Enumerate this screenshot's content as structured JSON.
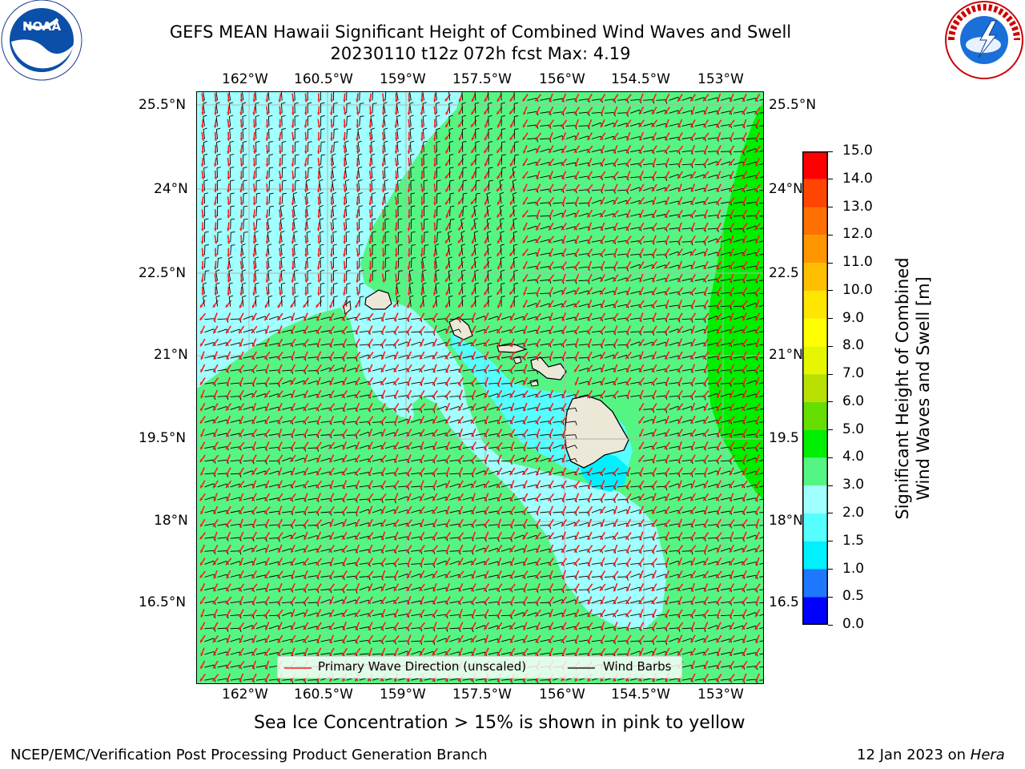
{
  "header": {
    "title_line1": "GEFS MEAN Hawaii Significant Height of Combined Wind Waves and Swell",
    "title_line2": "20230110 t12z 072h fcst   Max: 4.19"
  },
  "logos": {
    "noaa_text": "NOAA",
    "noaa_ring_text": "NATIONAL OCEANIC AND ATMOSPHERIC ADMINISTRATION · U.S. DEPARTMENT OF COMMERCE",
    "nws_ring_text": "NATIONAL WEATHER SERVICE"
  },
  "map": {
    "lon_labels": [
      "162°W",
      "160.5°W",
      "159°W",
      "157.5°W",
      "156°W",
      "154.5°W",
      "153°W"
    ],
    "lat_labels_left": [
      "25.5°N",
      "24°N",
      "22.5°N",
      "21°N",
      "19.5°N",
      "18°N",
      "16.5°N"
    ],
    "lat_labels_right": [
      "25.5°N",
      "24°N",
      "22.5",
      "21°N",
      "19.5",
      "18°N",
      "16.5"
    ],
    "legend": {
      "wave_direction": "Primary Wave Direction (unscaled)",
      "wind_barbs": "Wind Barbs"
    },
    "colors": {
      "ocean_base": "#55f583",
      "band_2_3": "#a0ffff",
      "band_1_5_2": "#55ffff",
      "band_1_1_5": "#00f0ff",
      "band_4_5": "#00ee00",
      "land": "#ece8d8",
      "wave_arrow": "#ff1a1a",
      "wind_barb": "#000000"
    }
  },
  "colorbar": {
    "label": "Significant Height of Combined Wind Waves and Swell [m]",
    "label_line1": "Significant Height of Combined",
    "label_line2": "Wind Waves and Swell [m]",
    "ticks": [
      "15.0",
      "14.0",
      "13.0",
      "12.0",
      "11.0",
      "10.0",
      "9.0",
      "8.0",
      "7.0",
      "6.0",
      "5.0",
      "4.0",
      "3.0",
      "2.0",
      "1.5",
      "1.0",
      "0.5",
      "0.0"
    ],
    "bands": [
      {
        "from": 0.0,
        "to": 0.5,
        "color": "#0000ff"
      },
      {
        "from": 0.5,
        "to": 1.0,
        "color": "#1e78ff"
      },
      {
        "from": 1.0,
        "to": 1.5,
        "color": "#00f0ff"
      },
      {
        "from": 1.5,
        "to": 2.0,
        "color": "#55ffff"
      },
      {
        "from": 2.0,
        "to": 3.0,
        "color": "#a0ffff"
      },
      {
        "from": 3.0,
        "to": 4.0,
        "color": "#55f583"
      },
      {
        "from": 4.0,
        "to": 5.0,
        "color": "#00ee00"
      },
      {
        "from": 5.0,
        "to": 6.0,
        "color": "#66dd00"
      },
      {
        "from": 6.0,
        "to": 7.0,
        "color": "#b8e000"
      },
      {
        "from": 7.0,
        "to": 8.0,
        "color": "#e6f500"
      },
      {
        "from": 8.0,
        "to": 9.0,
        "color": "#ffff00"
      },
      {
        "from": 9.0,
        "to": 10.0,
        "color": "#ffe600"
      },
      {
        "from": 10.0,
        "to": 11.0,
        "color": "#ffbe00"
      },
      {
        "from": 11.0,
        "to": 12.0,
        "color": "#ff9600"
      },
      {
        "from": 12.0,
        "to": 13.0,
        "color": "#ff7000"
      },
      {
        "from": 13.0,
        "to": 14.0,
        "color": "#ff4500"
      },
      {
        "from": 14.0,
        "to": 15.0,
        "color": "#ff0000"
      }
    ]
  },
  "notes": {
    "sea_ice": "Sea Ice Concentration > 15% is shown in pink to yellow"
  },
  "footer": {
    "left": "NCEP/EMC/Verification Post Processing Product Generation Branch",
    "right_prefix": "12 Jan 2023 on ",
    "right_machine": "Hera"
  }
}
